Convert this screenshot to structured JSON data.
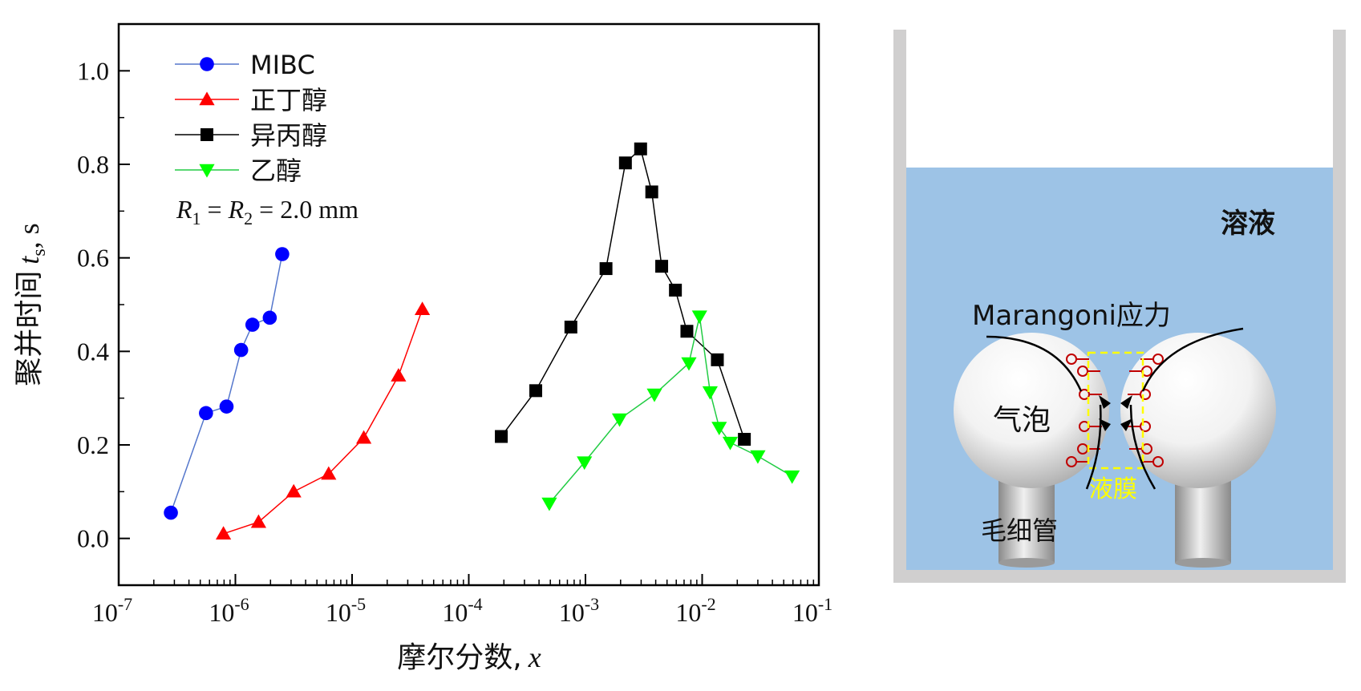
{
  "chart_data": {
    "type": "scatter",
    "xscale": "log",
    "xlim": [
      1e-07,
      0.1
    ],
    "ylim": [
      -0.1,
      1.1
    ],
    "xlabel": "摩尔分数,",
    "xlabel_var": "x",
    "ylabel": "聚并时间",
    "ylabel_var": "t",
    "ylabel_sub": "s",
    "ylabel_unit": ", s",
    "x_ticks": [
      1e-07,
      1e-06,
      1e-05,
      0.0001,
      0.001,
      0.01,
      0.1
    ],
    "x_tick_labels": [
      {
        "base": "10",
        "exp": "-7"
      },
      {
        "base": "10",
        "exp": "-6"
      },
      {
        "base": "10",
        "exp": "-5"
      },
      {
        "base": "10",
        "exp": "-4"
      },
      {
        "base": "10",
        "exp": "-3"
      },
      {
        "base": "10",
        "exp": "-2"
      },
      {
        "base": "10",
        "exp": "-1"
      }
    ],
    "y_ticks": [
      0.0,
      0.2,
      0.4,
      0.6,
      0.8,
      1.0
    ],
    "y_tick_labels": [
      "0.0",
      "0.2",
      "0.4",
      "0.6",
      "0.8",
      "1.0"
    ],
    "grid": false,
    "legend_position": "top-left",
    "annotation": {
      "r1": "R",
      "s1": "1",
      "eq": " = ",
      "r2": "R",
      "s2": "2",
      "val": " = 2.0 mm"
    },
    "series": [
      {
        "name": "MIBC",
        "marker": "circle",
        "color": "#0000ff",
        "line_color": "#5577cc",
        "x": [
          2.8e-07,
          5.6e-07,
          8.4e-07,
          1.12e-06,
          1.4e-06,
          1.97e-06,
          2.52e-06
        ],
        "y": [
          0.055,
          0.268,
          0.282,
          0.403,
          0.457,
          0.472,
          0.608
        ]
      },
      {
        "name": "正丁醇",
        "marker": "triangle-up",
        "color": "#ff0000",
        "line_color": "#ff0000",
        "x": [
          7.9e-07,
          1.58e-06,
          3.16e-06,
          6.3e-06,
          1.26e-05,
          2.5e-05,
          4e-05
        ],
        "y": [
          0.01,
          0.035,
          0.1,
          0.138,
          0.215,
          0.348,
          0.49
        ]
      },
      {
        "name": "异丙醇",
        "marker": "square",
        "color": "#000000",
        "line_color": "#000000",
        "x": [
          0.00019,
          0.000375,
          0.00075,
          0.0015,
          0.0022,
          0.00297,
          0.0037,
          0.0045,
          0.0059,
          0.0074,
          0.0135,
          0.023
        ],
        "y": [
          0.218,
          0.316,
          0.452,
          0.577,
          0.803,
          0.833,
          0.741,
          0.582,
          0.531,
          0.443,
          0.382,
          0.212
        ]
      },
      {
        "name": "乙醇",
        "marker": "triangle-down",
        "color": "#00ff00",
        "line_color": "#22cc44",
        "x": [
          0.00049,
          0.00098,
          0.00196,
          0.0039,
          0.0077,
          0.0095,
          0.0117,
          0.014,
          0.0174,
          0.03,
          0.059
        ],
        "y": [
          0.075,
          0.163,
          0.255,
          0.308,
          0.375,
          0.475,
          0.313,
          0.237,
          0.205,
          0.176,
          0.133
        ]
      }
    ]
  },
  "diagram": {
    "solution_label": "溶液",
    "stress_label": "Marangoni应力",
    "bubble_label": "气泡",
    "film_label": "液膜",
    "capillary_label": "毛细管",
    "colors": {
      "solution": "#9dc3e6",
      "wall": "#d0cfcf",
      "film": "#ffff00",
      "surfactant": "#c00000"
    }
  }
}
